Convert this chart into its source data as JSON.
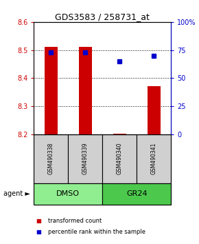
{
  "title": "GDS3583 / 258731_at",
  "samples": [
    "GSM490338",
    "GSM490339",
    "GSM490340",
    "GSM490341"
  ],
  "transformed_counts": [
    8.51,
    8.51,
    8.202,
    8.37
  ],
  "percentile_ranks": [
    73,
    73,
    65,
    70
  ],
  "bar_bottom": 8.2,
  "ylim_left": [
    8.2,
    8.6
  ],
  "ylim_right": [
    0,
    100
  ],
  "yticks_left": [
    8.2,
    8.3,
    8.4,
    8.5,
    8.6
  ],
  "yticks_right": [
    0,
    25,
    50,
    75,
    100
  ],
  "ytick_labels_right": [
    "0",
    "25",
    "50",
    "75",
    "100%"
  ],
  "groups": [
    {
      "label": "DMSO",
      "samples": [
        0,
        1
      ],
      "color": "#90EE90"
    },
    {
      "label": "GR24",
      "samples": [
        2,
        3
      ],
      "color": "#4CC94C"
    }
  ],
  "bar_color": "#CC0000",
  "dot_color": "#0000CC",
  "agent_label": "agent",
  "sample_bg": "#D0D0D0",
  "legend_items": [
    {
      "label": "transformed count",
      "color": "#CC0000"
    },
    {
      "label": "percentile rank within the sample",
      "color": "#0000CC"
    }
  ]
}
